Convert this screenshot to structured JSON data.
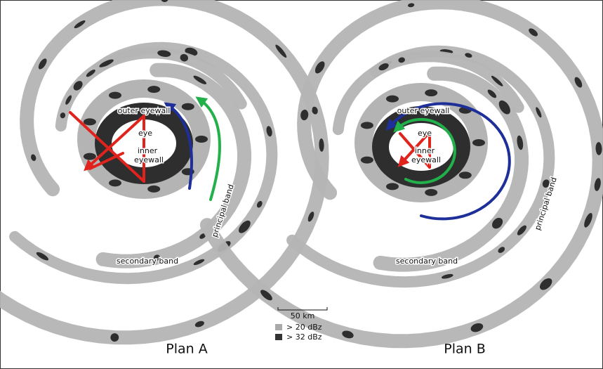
{
  "panels": [
    {
      "title": "Plan A",
      "outer_eyewall": "outer eyewall",
      "eye": "eye",
      "inner_eyewall": [
        "inner",
        "eyewall"
      ],
      "principal_band": "principal band",
      "secondary_band": "secondary band"
    },
    {
      "title": "Plan B",
      "outer_eyewall": "outer eyewall",
      "eye": "eye",
      "inner_eyewall": [
        "inner",
        "eyewall"
      ],
      "principal_band": "principal band",
      "secondary_band": "secondary band"
    }
  ],
  "legend": {
    "scale": "50 km",
    "items": [
      "> 20 dBz",
      "> 32 dBz"
    ]
  }
}
